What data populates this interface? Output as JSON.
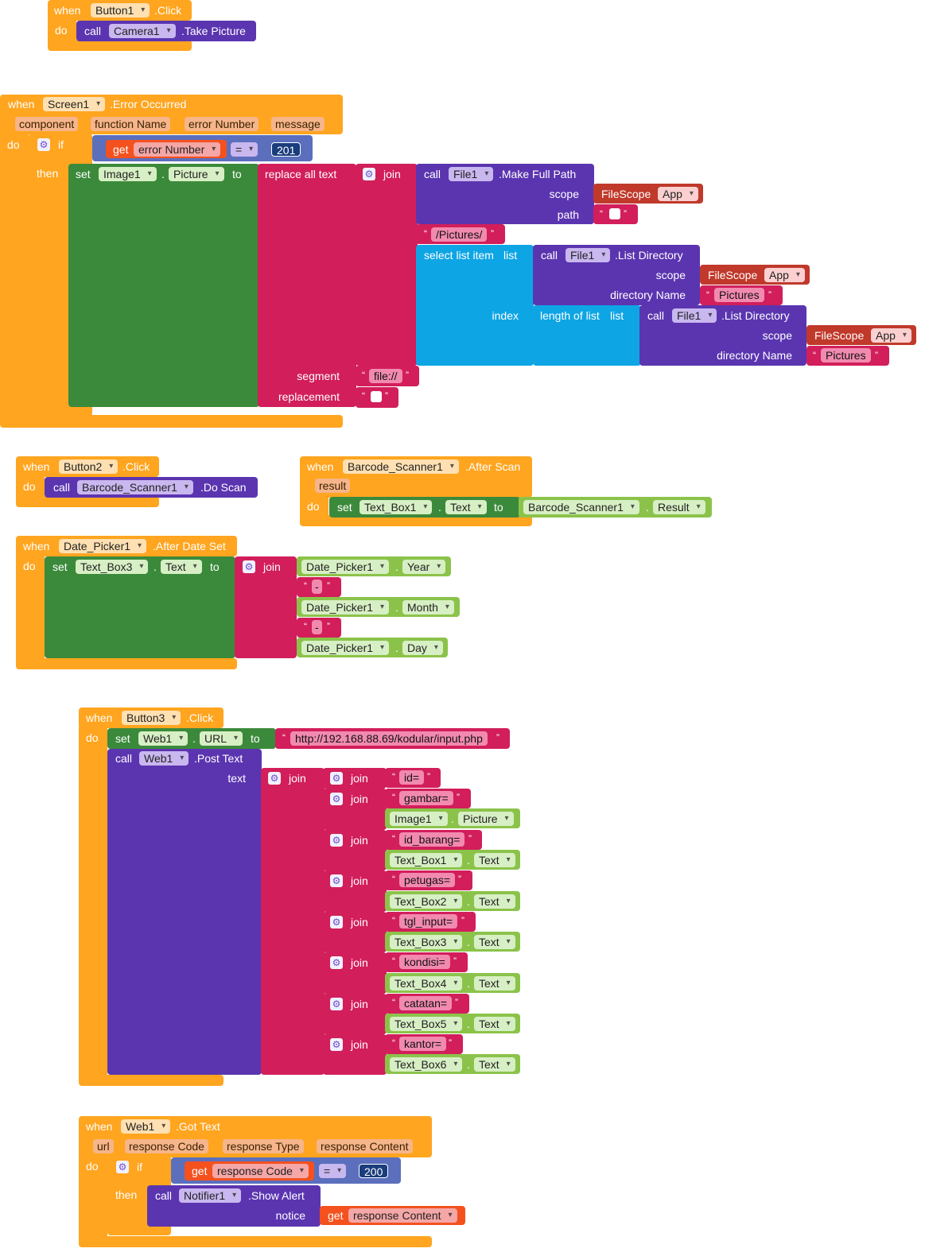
{
  "kw": {
    "when": "when",
    "do": "do",
    "call": "call",
    "set": "set",
    "to": "to",
    "get": "get",
    "if": "if",
    "then": "then",
    "join": "join",
    "dot": ".",
    "eq": "=",
    "lq": "“",
    "rq": "”"
  },
  "b1": {
    "component": "Button1",
    "event": ".Click",
    "camera": "Camera1",
    "method": ".Take Picture"
  },
  "err": {
    "component": "Screen1",
    "event": ".Error Occurred",
    "params": [
      "component",
      "function Name",
      "error Number",
      "message"
    ],
    "var": "error Number",
    "num": "201",
    "image": "Image1",
    "prop": "Picture",
    "replace": "replace all text",
    "file": "File1",
    "mkpath": ".Make Full Path",
    "scope": "scope",
    "path": "path",
    "fs": "FileScope",
    "app": "App",
    "pictures_path": "/Pictures/",
    "select": "select list item",
    "list": "list",
    "listdir": ".List Directory",
    "dirname": "directory Name",
    "pictures": "Pictures",
    "index": "index",
    "length": "length of list",
    "segment": "segment",
    "segval": "file://",
    "replacement": "replacement"
  },
  "b2": {
    "component": "Button2",
    "event": ".Click",
    "scanner": "Barcode_Scanner1",
    "method": ".Do Scan"
  },
  "bs": {
    "component": "Barcode_Scanner1",
    "event": ".After Scan",
    "param": "result",
    "textbox": "Text_Box1",
    "prop": "Text",
    "result": "Result"
  },
  "dp": {
    "component": "Date_Picker1",
    "event": ".After Date Set",
    "textbox": "Text_Box3",
    "prop": "Text",
    "year": "Year",
    "month": "Month",
    "day": "Day",
    "sep": "-"
  },
  "b3": {
    "component": "Button3",
    "event": ".Click",
    "web": "Web1",
    "url_prop": "URL",
    "url": "http://192.168.88.69/kodular/input.php",
    "post": ".Post Text",
    "text": "text",
    "rows": [
      {
        "label": "id="
      },
      {
        "label": "gambar=",
        "comp": "Image1",
        "prop": "Picture"
      },
      {
        "label": "id_barang=",
        "comp": "Text_Box1",
        "prop": "Text"
      },
      {
        "label": "petugas=",
        "comp": "Text_Box2",
        "prop": "Text"
      },
      {
        "label": "tgl_input=",
        "comp": "Text_Box3",
        "prop": "Text"
      },
      {
        "label": "kondisi=",
        "comp": "Text_Box4",
        "prop": "Text"
      },
      {
        "label": "catatan=",
        "comp": "Text_Box5",
        "prop": "Text"
      },
      {
        "label": "kantor=",
        "comp": "Text_Box6",
        "prop": "Text"
      }
    ]
  },
  "wt": {
    "component": "Web1",
    "event": ".Got Text",
    "params": [
      "url",
      "response Code",
      "response Type",
      "response Content"
    ],
    "var": "response Code",
    "num": "200",
    "notifier": "Notifier1",
    "alert": ".Show Alert",
    "notice": "notice",
    "content": "response Content"
  }
}
